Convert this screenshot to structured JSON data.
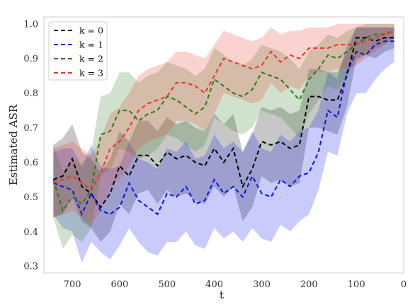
{
  "chart_data": {
    "type": "line",
    "title": "",
    "xlabel": "t",
    "ylabel": "Estimated ASR",
    "xlim": [
      760,
      0
    ],
    "ylim": [
      0.28,
      1.02
    ],
    "x_inverted": true,
    "xticks": [
      700,
      600,
      500,
      400,
      300,
      200,
      100,
      0
    ],
    "yticks": [
      0.3,
      0.4,
      0.5,
      0.6,
      0.7,
      0.8,
      0.9,
      1.0
    ],
    "xtick_labels": [
      "700",
      "600",
      "500",
      "400",
      "300",
      "200",
      "100",
      "0"
    ],
    "ytick_labels": [
      "0.3",
      "0.4",
      "0.5",
      "0.6",
      "0.7",
      "0.8",
      "0.9",
      "1.0"
    ],
    "grid": false,
    "legend_position": "top-left",
    "x": [
      740,
      720,
      700,
      680,
      660,
      640,
      620,
      600,
      580,
      560,
      540,
      520,
      500,
      480,
      460,
      440,
      420,
      400,
      380,
      360,
      340,
      320,
      300,
      280,
      260,
      240,
      220,
      200,
      180,
      160,
      140,
      120,
      100,
      80,
      60,
      40,
      20
    ],
    "series": [
      {
        "name": "k = 0",
        "color": "#000000",
        "values": [
          0.55,
          0.56,
          0.61,
          0.53,
          0.51,
          0.47,
          0.51,
          0.59,
          0.56,
          0.62,
          0.62,
          0.59,
          0.63,
          0.61,
          0.62,
          0.6,
          0.59,
          0.64,
          0.6,
          0.64,
          0.53,
          0.58,
          0.66,
          0.65,
          0.66,
          0.64,
          0.65,
          0.79,
          0.79,
          0.78,
          0.78,
          0.85,
          0.96,
          0.96,
          0.95,
          0.96,
          0.96
        ],
        "lower": [
          0.44,
          0.45,
          0.5,
          0.43,
          0.41,
          0.37,
          0.4,
          0.48,
          0.45,
          0.51,
          0.52,
          0.48,
          0.52,
          0.5,
          0.51,
          0.49,
          0.48,
          0.53,
          0.5,
          0.53,
          0.43,
          0.47,
          0.56,
          0.54,
          0.55,
          0.53,
          0.54,
          0.7,
          0.7,
          0.69,
          0.68,
          0.76,
          0.9,
          0.91,
          0.9,
          0.92,
          0.93
        ],
        "upper": [
          0.65,
          0.67,
          0.71,
          0.63,
          0.61,
          0.57,
          0.61,
          0.69,
          0.66,
          0.72,
          0.72,
          0.69,
          0.73,
          0.71,
          0.72,
          0.7,
          0.69,
          0.74,
          0.71,
          0.74,
          0.63,
          0.68,
          0.76,
          0.75,
          0.76,
          0.74,
          0.75,
          0.87,
          0.87,
          0.86,
          0.86,
          0.92,
          0.99,
          0.99,
          0.99,
          0.99,
          0.99
        ]
      },
      {
        "name": "k = 1",
        "color": "#0a14e6",
        "values": [
          0.54,
          0.53,
          0.52,
          0.45,
          0.51,
          0.46,
          0.45,
          0.47,
          0.54,
          0.49,
          0.47,
          0.45,
          0.51,
          0.5,
          0.53,
          0.48,
          0.49,
          0.55,
          0.51,
          0.53,
          0.5,
          0.56,
          0.51,
          0.5,
          0.55,
          0.53,
          0.56,
          0.57,
          0.63,
          0.75,
          0.73,
          0.86,
          0.92,
          0.91,
          0.94,
          0.95,
          0.95
        ],
        "lower": [
          0.45,
          0.41,
          0.4,
          0.31,
          0.37,
          0.34,
          0.32,
          0.36,
          0.41,
          0.37,
          0.34,
          0.33,
          0.37,
          0.37,
          0.4,
          0.36,
          0.35,
          0.41,
          0.38,
          0.4,
          0.37,
          0.41,
          0.38,
          0.37,
          0.42,
          0.4,
          0.43,
          0.45,
          0.52,
          0.63,
          0.62,
          0.74,
          0.8,
          0.8,
          0.84,
          0.87,
          0.89
        ],
        "upper": [
          0.63,
          0.64,
          0.64,
          0.59,
          0.65,
          0.59,
          0.58,
          0.59,
          0.66,
          0.61,
          0.6,
          0.58,
          0.64,
          0.63,
          0.66,
          0.61,
          0.62,
          0.68,
          0.64,
          0.66,
          0.63,
          0.69,
          0.64,
          0.63,
          0.68,
          0.66,
          0.69,
          0.7,
          0.75,
          0.86,
          0.84,
          0.94,
          0.99,
          0.99,
          0.99,
          0.99,
          0.99
        ]
      },
      {
        "name": "k = 2",
        "color": "#2a7a1a",
        "values": [
          0.55,
          0.46,
          0.5,
          0.48,
          0.52,
          0.68,
          0.69,
          0.75,
          0.75,
          0.72,
          0.74,
          0.75,
          0.79,
          0.78,
          0.76,
          0.74,
          0.76,
          0.84,
          0.82,
          0.8,
          0.79,
          0.81,
          0.86,
          0.85,
          0.84,
          0.81,
          0.78,
          0.84,
          0.87,
          0.91,
          0.9,
          0.92,
          0.94,
          0.96,
          0.97,
          0.97,
          0.98
        ],
        "lower": [
          0.44,
          0.35,
          0.39,
          0.37,
          0.41,
          0.56,
          0.58,
          0.64,
          0.63,
          0.61,
          0.62,
          0.64,
          0.68,
          0.67,
          0.65,
          0.63,
          0.65,
          0.73,
          0.71,
          0.69,
          0.68,
          0.7,
          0.75,
          0.74,
          0.73,
          0.7,
          0.67,
          0.74,
          0.78,
          0.82,
          0.81,
          0.85,
          0.89,
          0.91,
          0.93,
          0.94,
          0.96
        ],
        "upper": [
          0.65,
          0.57,
          0.61,
          0.59,
          0.63,
          0.79,
          0.8,
          0.86,
          0.86,
          0.83,
          0.85,
          0.86,
          0.89,
          0.88,
          0.87,
          0.85,
          0.87,
          0.93,
          0.91,
          0.89,
          0.88,
          0.9,
          0.94,
          0.93,
          0.92,
          0.9,
          0.87,
          0.92,
          0.94,
          0.97,
          0.96,
          0.98,
          0.99,
          1.0,
          1.0,
          1.0,
          1.0
        ]
      },
      {
        "name": "k = 3",
        "color": "#e8352a",
        "values": [
          0.54,
          0.55,
          0.56,
          0.54,
          0.52,
          0.57,
          0.64,
          0.66,
          0.7,
          0.75,
          0.77,
          0.78,
          0.79,
          0.83,
          0.83,
          0.82,
          0.8,
          0.85,
          0.9,
          0.89,
          0.88,
          0.87,
          0.88,
          0.92,
          0.89,
          0.91,
          0.9,
          0.93,
          0.93,
          0.93,
          0.94,
          0.94,
          0.94,
          0.95,
          0.96,
          0.97,
          0.98
        ],
        "lower": [
          0.44,
          0.45,
          0.46,
          0.44,
          0.42,
          0.46,
          0.53,
          0.55,
          0.59,
          0.64,
          0.66,
          0.67,
          0.68,
          0.72,
          0.72,
          0.71,
          0.69,
          0.74,
          0.8,
          0.79,
          0.78,
          0.77,
          0.78,
          0.83,
          0.8,
          0.82,
          0.81,
          0.85,
          0.86,
          0.86,
          0.87,
          0.87,
          0.88,
          0.9,
          0.92,
          0.94,
          0.96
        ],
        "upper": [
          0.64,
          0.65,
          0.66,
          0.64,
          0.62,
          0.67,
          0.74,
          0.76,
          0.8,
          0.85,
          0.87,
          0.88,
          0.89,
          0.92,
          0.92,
          0.91,
          0.9,
          0.94,
          0.98,
          0.97,
          0.96,
          0.95,
          0.96,
          0.99,
          0.97,
          0.98,
          0.98,
          0.99,
          0.99,
          0.99,
          1.0,
          1.0,
          1.0,
          1.0,
          1.0,
          1.0,
          1.0
        ]
      }
    ]
  }
}
